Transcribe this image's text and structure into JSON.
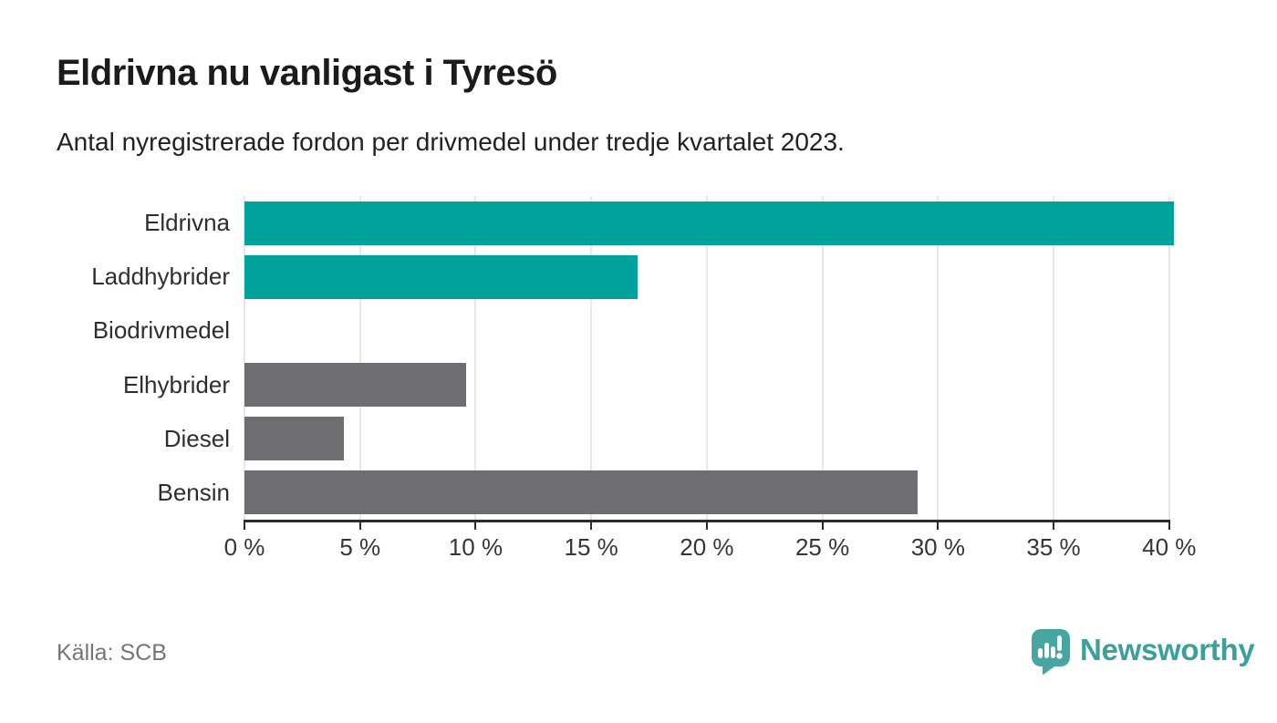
{
  "header": {
    "title": "Eldrivna nu vanligast i Tyresö",
    "subtitle": "Antal nyregistrerade fordon per drivmedel under tredje kvartalet 2023."
  },
  "footer": {
    "source": "Källa: SCB",
    "brand_name": "Newsworthy",
    "brand_icon": "bar-chart-speech-bubble",
    "brand_text_color": "#3aa09c",
    "brand_icon_color": "#47a6a2"
  },
  "colors": {
    "electric_teal": "#00a29b",
    "fossil_gray": "#6d6d72",
    "axis": "#2b2b2b",
    "gridline": "#e7e7e7",
    "background": "#ffffff"
  },
  "chart_data": {
    "type": "bar",
    "orientation": "horizontal",
    "title": "Eldrivna nu vanligast i Tyresö",
    "subtitle": "Antal nyregistrerade fordon per drivmedel under tredje kvartalet 2023.",
    "categories": [
      "Eldrivna",
      "Laddhybrider",
      "Biodrivmedel",
      "Elhybrider",
      "Diesel",
      "Bensin"
    ],
    "values": [
      40.2,
      17.0,
      0,
      9.6,
      4.3,
      29.1
    ],
    "bar_colors": [
      "#00a29b",
      "#00a29b",
      "#6d6d72",
      "#6d6d72",
      "#6d6d72",
      "#6d6d72"
    ],
    "unit": "%",
    "xlabel": "",
    "ylabel": "",
    "x_tick_values": [
      0,
      5,
      10,
      15,
      20,
      25,
      30,
      35,
      40
    ],
    "x_tick_labels": [
      "0 %",
      "5 %",
      "10 %",
      "15 %",
      "20 %",
      "25 %",
      "30 %",
      "35 %",
      "40 %"
    ],
    "xlim": [
      0,
      41.35
    ],
    "grid": "vertical",
    "legend": "none"
  }
}
